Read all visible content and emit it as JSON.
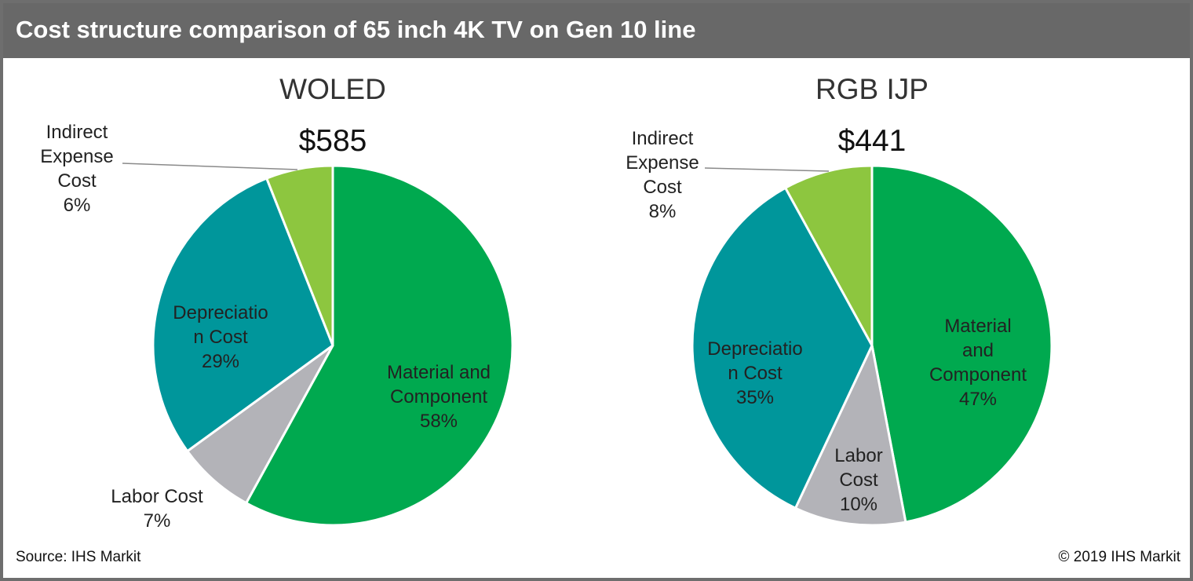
{
  "header": {
    "title": "Cost structure comparison of 65 inch 4K TV on Gen 10 line"
  },
  "footer": {
    "source": "Source: IHS  Markit",
    "copyright": "© 2019 IHS  Markit"
  },
  "chart_data": [
    {
      "type": "pie",
      "title": "WOLED",
      "total": "$585",
      "slices": [
        {
          "label": "Material and Component",
          "value": 58,
          "display": "58%",
          "color": "#00a94f",
          "label_lines": [
            "Material and",
            "Component",
            "58%"
          ]
        },
        {
          "label": "Labor Cost",
          "value": 7,
          "display": "7%",
          "color": "#b3b3b8",
          "label_lines": [
            "Labor Cost",
            "7%"
          ]
        },
        {
          "label": "Depreciation Cost",
          "value": 29,
          "display": "29%",
          "color": "#00969b",
          "label_lines": [
            "Depreciatio",
            "n Cost",
            "29%"
          ]
        },
        {
          "label": "Indirect Expense Cost",
          "value": 6,
          "display": "6%",
          "color": "#8dc63f",
          "label_lines": [
            "Indirect",
            "Expense",
            "Cost",
            "6%"
          ]
        }
      ]
    },
    {
      "type": "pie",
      "title": "RGB IJP",
      "total": "$441",
      "slices": [
        {
          "label": "Material and Component",
          "value": 47,
          "display": "47%",
          "color": "#00a94f",
          "label_lines": [
            "Material",
            "and",
            "Component",
            "47%"
          ]
        },
        {
          "label": "Labor Cost",
          "value": 10,
          "display": "10%",
          "color": "#b3b3b8",
          "label_lines": [
            "Labor",
            "Cost",
            "10%"
          ]
        },
        {
          "label": "Depreciation Cost",
          "value": 35,
          "display": "35%",
          "color": "#00969b",
          "label_lines": [
            "Depreciatio",
            "n Cost",
            "35%"
          ]
        },
        {
          "label": "Indirect Expense Cost",
          "value": 8,
          "display": "8%",
          "color": "#8dc63f",
          "label_lines": [
            "Indirect",
            "Expense",
            "Cost",
            "8%"
          ]
        }
      ]
    }
  ]
}
